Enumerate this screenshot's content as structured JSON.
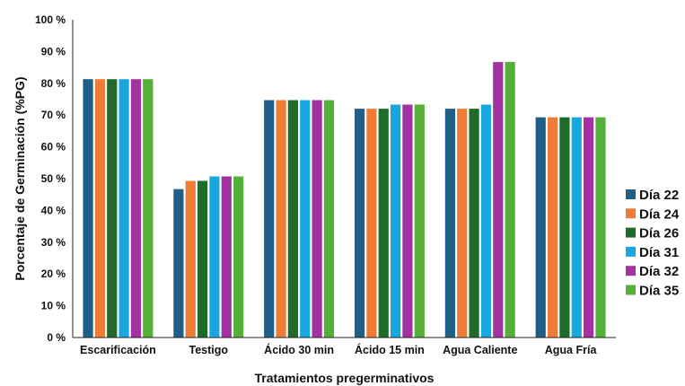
{
  "chart_data": {
    "type": "bar",
    "title": "",
    "xlabel": "Tratamientos pregerminativos",
    "ylabel": "Porcentaje de Germinación  (%PG)",
    "ylim": [
      0,
      100
    ],
    "yticks": [
      0,
      10,
      20,
      30,
      40,
      50,
      60,
      70,
      80,
      90,
      100
    ],
    "ytick_labels": [
      "0 %",
      "10 %",
      "20 %",
      "30 %",
      "40 %",
      "50 %",
      "60 %",
      "70 %",
      "80 %",
      "90 %",
      "100 %"
    ],
    "grid": false,
    "legend_position": "right",
    "categories": [
      "Escarificación",
      "Testigo",
      "Ácido 30 min",
      "Ácido 15 min",
      "Agua Caliente",
      "Agua Fría"
    ],
    "series": [
      {
        "name": "Día 22",
        "color": "#1F5F87",
        "values": [
          81.3,
          46.7,
          74.7,
          72.0,
          72.0,
          69.3
        ]
      },
      {
        "name": "Día 24",
        "color": "#EE7C37",
        "values": [
          81.3,
          49.3,
          74.7,
          72.0,
          72.0,
          69.3
        ]
      },
      {
        "name": "Día 26",
        "color": "#1F6B2B",
        "values": [
          81.3,
          49.3,
          74.7,
          72.0,
          72.0,
          69.3
        ]
      },
      {
        "name": "Día 31",
        "color": "#19A7E0",
        "values": [
          81.3,
          50.7,
          74.7,
          73.3,
          73.3,
          69.3
        ]
      },
      {
        "name": "Día 32",
        "color": "#A2329F",
        "values": [
          81.3,
          50.7,
          74.7,
          73.3,
          86.7,
          69.3
        ]
      },
      {
        "name": "Día 35",
        "color": "#55B038",
        "values": [
          81.3,
          50.7,
          74.7,
          73.3,
          86.7,
          69.3
        ]
      }
    ]
  }
}
